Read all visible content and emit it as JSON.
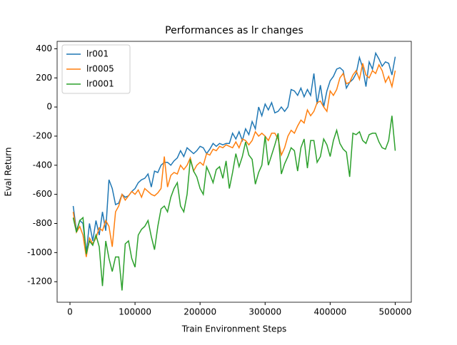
{
  "chart_data": {
    "type": "line",
    "title": "Performances as lr changes",
    "xlabel": "Train Environment Steps",
    "ylabel": "Eval Return",
    "x": [
      5000,
      10000,
      15000,
      20000,
      25000,
      30000,
      35000,
      40000,
      45000,
      50000,
      55000,
      60000,
      65000,
      70000,
      75000,
      80000,
      85000,
      90000,
      95000,
      100000,
      105000,
      110000,
      115000,
      120000,
      125000,
      130000,
      135000,
      140000,
      145000,
      150000,
      155000,
      160000,
      165000,
      170000,
      175000,
      180000,
      185000,
      190000,
      195000,
      200000,
      205000,
      210000,
      215000,
      220000,
      225000,
      230000,
      235000,
      240000,
      245000,
      250000,
      255000,
      260000,
      265000,
      270000,
      275000,
      280000,
      285000,
      290000,
      295000,
      300000,
      305000,
      310000,
      315000,
      320000,
      325000,
      330000,
      335000,
      340000,
      345000,
      350000,
      355000,
      360000,
      365000,
      370000,
      375000,
      380000,
      385000,
      390000,
      395000,
      400000,
      405000,
      410000,
      415000,
      420000,
      425000,
      430000,
      435000,
      440000,
      445000,
      450000,
      455000,
      460000,
      465000,
      470000,
      475000,
      480000,
      485000,
      490000,
      495000,
      500000
    ],
    "series": [
      {
        "name": "lr001",
        "color": "#1f77b4",
        "values": [
          -680,
          -850,
          -780,
          -800,
          -1000,
          -800,
          -920,
          -780,
          -880,
          -720,
          -850,
          -500,
          -560,
          -670,
          -660,
          -600,
          -620,
          -610,
          -580,
          -560,
          -520,
          -500,
          -490,
          -460,
          -550,
          -440,
          -450,
          -400,
          -380,
          -380,
          -400,
          -370,
          -350,
          -300,
          -340,
          -280,
          -300,
          -320,
          -300,
          -270,
          -280,
          -320,
          -290,
          -250,
          -270,
          -250,
          -260,
          -250,
          -250,
          -180,
          -220,
          -170,
          -230,
          -150,
          -190,
          -100,
          -150,
          0,
          -60,
          20,
          -20,
          30,
          -40,
          -30,
          0,
          -30,
          0,
          120,
          110,
          80,
          130,
          70,
          120,
          80,
          230,
          20,
          150,
          0,
          110,
          180,
          210,
          260,
          270,
          250,
          130,
          170,
          190,
          230,
          340,
          270,
          140,
          310,
          260,
          370,
          330,
          280,
          310,
          300,
          220,
          345
        ]
      },
      {
        "name": "lr0005",
        "color": "#ff7f0e",
        "values": [
          -720,
          -860,
          -820,
          -880,
          -1030,
          -900,
          -940,
          -900,
          -830,
          -850,
          -780,
          -820,
          -960,
          -720,
          -680,
          -600,
          -640,
          -610,
          -580,
          -600,
          -570,
          -620,
          -560,
          -580,
          -600,
          -610,
          -590,
          -560,
          -340,
          -550,
          -470,
          -450,
          -460,
          -400,
          -430,
          -400,
          -350,
          -440,
          -400,
          -380,
          -400,
          -320,
          -330,
          -290,
          -300,
          -270,
          -280,
          -260,
          -270,
          -280,
          -240,
          -280,
          -220,
          -230,
          -260,
          -230,
          -170,
          -200,
          -180,
          -200,
          -230,
          -180,
          -180,
          -220,
          -330,
          -280,
          -200,
          -160,
          -180,
          -130,
          -90,
          -110,
          -20,
          -60,
          -30,
          30,
          40,
          0,
          -30,
          110,
          80,
          120,
          200,
          230,
          160,
          170,
          220,
          250,
          190,
          300,
          220,
          200,
          250,
          230,
          290,
          250,
          170,
          210,
          140,
          250
        ]
      },
      {
        "name": "lr0001",
        "color": "#2ca02c",
        "values": [
          -760,
          -860,
          -780,
          -760,
          -1010,
          -920,
          -950,
          -880,
          -960,
          -1230,
          -920,
          -1040,
          -1130,
          -1030,
          -1030,
          -1260,
          -940,
          -920,
          -1040,
          -1100,
          -880,
          -840,
          -820,
          -780,
          -890,
          -980,
          -820,
          -700,
          -680,
          -720,
          -620,
          -560,
          -520,
          -680,
          -720,
          -600,
          -360,
          -440,
          -480,
          -560,
          -600,
          -410,
          -460,
          -520,
          -430,
          -410,
          -490,
          -370,
          -560,
          -450,
          -320,
          -410,
          -340,
          -240,
          -330,
          -360,
          -530,
          -450,
          -400,
          -200,
          -400,
          -330,
          -260,
          -180,
          -460,
          -390,
          -340,
          -280,
          -300,
          -440,
          -280,
          -220,
          -420,
          -230,
          -230,
          -380,
          -340,
          -220,
          -260,
          -340,
          -230,
          -160,
          -250,
          -290,
          -310,
          -480,
          -180,
          -190,
          -170,
          -230,
          -250,
          -190,
          -180,
          -180,
          -240,
          -280,
          -290,
          -230,
          -60,
          -300
        ]
      }
    ],
    "xlim": [
      -19750,
      524750
    ],
    "ylim": [
      -1341,
      451
    ],
    "xticks": [
      0,
      100000,
      200000,
      300000,
      400000,
      500000
    ],
    "yticks": [
      -1200,
      -1000,
      -800,
      -600,
      -400,
      -200,
      0,
      200,
      400
    ],
    "legend": "upper left"
  }
}
